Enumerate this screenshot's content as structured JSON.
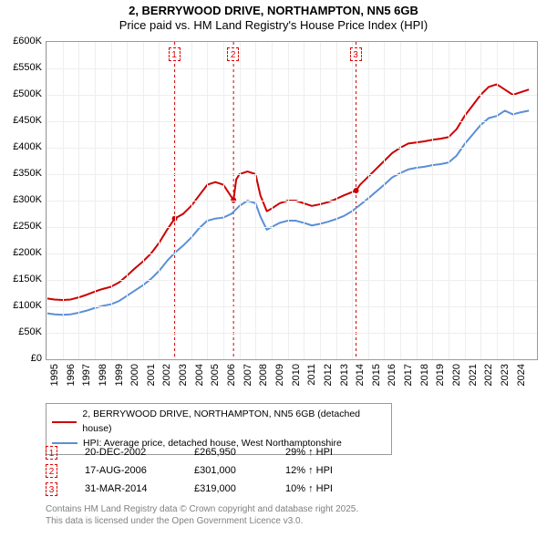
{
  "title": {
    "line1": "2, BERRYWOOD DRIVE, NORTHAMPTON, NN5 6GB",
    "line2": "Price paid vs. HM Land Registry's House Price Index (HPI)",
    "fontsize": 13
  },
  "chart": {
    "type": "line",
    "background_color": "#ffffff",
    "grid_color": "#eeeeee",
    "border_color": "#999999",
    "xlim": [
      1995,
      2025.5
    ],
    "ylim": [
      0,
      600000
    ],
    "ytick_step": 50000,
    "yticks": [
      {
        "v": 0,
        "label": "£0"
      },
      {
        "v": 50000,
        "label": "£50K"
      },
      {
        "v": 100000,
        "label": "£100K"
      },
      {
        "v": 150000,
        "label": "£150K"
      },
      {
        "v": 200000,
        "label": "£200K"
      },
      {
        "v": 250000,
        "label": "£250K"
      },
      {
        "v": 300000,
        "label": "£300K"
      },
      {
        "v": 350000,
        "label": "£350K"
      },
      {
        "v": 400000,
        "label": "£400K"
      },
      {
        "v": 450000,
        "label": "£450K"
      },
      {
        "v": 500000,
        "label": "£500K"
      },
      {
        "v": 550000,
        "label": "£550K"
      },
      {
        "v": 600000,
        "label": "£600K"
      }
    ],
    "xticks": [
      1995,
      1996,
      1997,
      1998,
      1999,
      2000,
      2001,
      2002,
      2003,
      2004,
      2005,
      2006,
      2007,
      2008,
      2009,
      2010,
      2011,
      2012,
      2013,
      2014,
      2015,
      2016,
      2017,
      2018,
      2019,
      2020,
      2021,
      2022,
      2023,
      2024
    ],
    "series": [
      {
        "name": "property",
        "label": "2, BERRYWOOD DRIVE, NORTHAMPTON, NN5 6GB (detached house)",
        "color": "#cc0000",
        "line_width": 2,
        "data": [
          [
            1995,
            115000
          ],
          [
            1995.5,
            113000
          ],
          [
            1996,
            112000
          ],
          [
            1996.5,
            113000
          ],
          [
            1997,
            117000
          ],
          [
            1997.5,
            122000
          ],
          [
            1998,
            128000
          ],
          [
            1998.5,
            133000
          ],
          [
            1999,
            137000
          ],
          [
            1999.5,
            145000
          ],
          [
            2000,
            158000
          ],
          [
            2000.5,
            172000
          ],
          [
            2001,
            185000
          ],
          [
            2001.5,
            200000
          ],
          [
            2002,
            220000
          ],
          [
            2002.5,
            245000
          ],
          [
            2002.97,
            265950
          ],
          [
            2003.5,
            275000
          ],
          [
            2004,
            290000
          ],
          [
            2004.5,
            310000
          ],
          [
            2005,
            330000
          ],
          [
            2005.5,
            335000
          ],
          [
            2006,
            330000
          ],
          [
            2006.63,
            301000
          ],
          [
            2006.8,
            340000
          ],
          [
            2007,
            350000
          ],
          [
            2007.5,
            355000
          ],
          [
            2008,
            350000
          ],
          [
            2008.3,
            310000
          ],
          [
            2008.7,
            280000
          ],
          [
            2009,
            285000
          ],
          [
            2009.5,
            295000
          ],
          [
            2010,
            300000
          ],
          [
            2010.5,
            300000
          ],
          [
            2011,
            295000
          ],
          [
            2011.5,
            290000
          ],
          [
            2012,
            293000
          ],
          [
            2012.5,
            297000
          ],
          [
            2013,
            303000
          ],
          [
            2013.5,
            310000
          ],
          [
            2014.25,
            319000
          ],
          [
            2014.5,
            330000
          ],
          [
            2015,
            345000
          ],
          [
            2015.5,
            360000
          ],
          [
            2016,
            375000
          ],
          [
            2016.5,
            390000
          ],
          [
            2017,
            400000
          ],
          [
            2017.5,
            408000
          ],
          [
            2018,
            410000
          ],
          [
            2018.5,
            412000
          ],
          [
            2019,
            415000
          ],
          [
            2019.5,
            417000
          ],
          [
            2020,
            420000
          ],
          [
            2020.5,
            435000
          ],
          [
            2021,
            460000
          ],
          [
            2021.5,
            480000
          ],
          [
            2022,
            500000
          ],
          [
            2022.5,
            515000
          ],
          [
            2023,
            520000
          ],
          [
            2023.5,
            510000
          ],
          [
            2024,
            500000
          ],
          [
            2024.5,
            505000
          ],
          [
            2025,
            510000
          ]
        ]
      },
      {
        "name": "hpi",
        "label": "HPI: Average price, detached house, West Northamptonshire",
        "color": "#5b8fd6",
        "line_width": 2,
        "data": [
          [
            1995,
            87000
          ],
          [
            1995.5,
            85000
          ],
          [
            1996,
            84000
          ],
          [
            1996.5,
            85000
          ],
          [
            1997,
            88000
          ],
          [
            1997.5,
            92000
          ],
          [
            1998,
            97000
          ],
          [
            1998.5,
            101000
          ],
          [
            1999,
            104000
          ],
          [
            1999.5,
            110000
          ],
          [
            2000,
            120000
          ],
          [
            2000.5,
            130000
          ],
          [
            2001,
            140000
          ],
          [
            2001.5,
            152000
          ],
          [
            2002,
            167000
          ],
          [
            2002.5,
            186000
          ],
          [
            2003,
            202000
          ],
          [
            2003.5,
            215000
          ],
          [
            2004,
            230000
          ],
          [
            2004.5,
            248000
          ],
          [
            2005,
            262000
          ],
          [
            2005.5,
            266000
          ],
          [
            2006,
            268000
          ],
          [
            2006.5,
            275000
          ],
          [
            2007,
            290000
          ],
          [
            2007.5,
            300000
          ],
          [
            2008,
            295000
          ],
          [
            2008.3,
            270000
          ],
          [
            2008.7,
            245000
          ],
          [
            2009,
            250000
          ],
          [
            2009.5,
            258000
          ],
          [
            2010,
            262000
          ],
          [
            2010.5,
            262000
          ],
          [
            2011,
            258000
          ],
          [
            2011.5,
            253000
          ],
          [
            2012,
            256000
          ],
          [
            2012.5,
            260000
          ],
          [
            2013,
            265000
          ],
          [
            2013.5,
            271000
          ],
          [
            2014,
            280000
          ],
          [
            2014.5,
            292000
          ],
          [
            2015,
            304000
          ],
          [
            2015.5,
            317000
          ],
          [
            2016,
            330000
          ],
          [
            2016.5,
            344000
          ],
          [
            2017,
            352000
          ],
          [
            2017.5,
            359000
          ],
          [
            2018,
            362000
          ],
          [
            2018.5,
            364000
          ],
          [
            2019,
            367000
          ],
          [
            2019.5,
            369000
          ],
          [
            2020,
            372000
          ],
          [
            2020.5,
            385000
          ],
          [
            2021,
            407000
          ],
          [
            2021.5,
            425000
          ],
          [
            2022,
            443000
          ],
          [
            2022.5,
            456000
          ],
          [
            2023,
            460000
          ],
          [
            2023.5,
            470000
          ],
          [
            2024,
            463000
          ],
          [
            2024.5,
            467000
          ],
          [
            2025,
            470000
          ]
        ]
      }
    ],
    "sale_markers": [
      {
        "n": "1",
        "x": 2002.97,
        "y": 265950
      },
      {
        "n": "2",
        "x": 2006.63,
        "y": 301000
      },
      {
        "n": "3",
        "x": 2014.25,
        "y": 319000
      }
    ],
    "marker_line_color": "#cc0000",
    "marker_line_dash": "3,3",
    "marker_dot_color": "#cc0000",
    "marker_dot_radius": 3
  },
  "legend": {
    "items": [
      {
        "color": "#cc0000",
        "label": "2, BERRYWOOD DRIVE, NORTHAMPTON, NN5 6GB (detached house)"
      },
      {
        "color": "#5b8fd6",
        "label": "HPI: Average price, detached house, West Northamptonshire"
      }
    ]
  },
  "sales": [
    {
      "n": "1",
      "date": "20-DEC-2002",
      "price": "£265,950",
      "hpi": "29% ↑ HPI"
    },
    {
      "n": "2",
      "date": "17-AUG-2006",
      "price": "£301,000",
      "hpi": "12% ↑ HPI"
    },
    {
      "n": "3",
      "date": "31-MAR-2014",
      "price": "£319,000",
      "hpi": "10% ↑ HPI"
    }
  ],
  "footer": {
    "line1": "Contains HM Land Registry data © Crown copyright and database right 2025.",
    "line2": "This data is licensed under the Open Government Licence v3.0."
  }
}
